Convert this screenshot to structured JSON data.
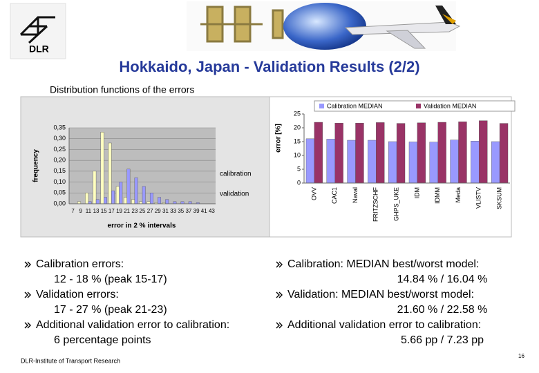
{
  "header": {
    "logo": "DLR",
    "title": "Hokkaido, Japan - Validation Results (2/2)"
  },
  "section_title": "Distribution functions of the errors",
  "chart_data": [
    {
      "type": "bar",
      "xlabel": "error in 2 % intervals",
      "ylabel": "frequency",
      "categories": [
        "7",
        "9",
        "11",
        "13",
        "15",
        "17",
        "19",
        "21",
        "23",
        "25",
        "27",
        "29",
        "31",
        "33",
        "35",
        "37",
        "39",
        "41",
        "43"
      ],
      "series": [
        {
          "name": "calibration",
          "color": "#ffffc0",
          "values": [
            0.0,
            0.01,
            0.05,
            0.15,
            0.33,
            0.28,
            0.08,
            0.03,
            0.02,
            0.01,
            0.01,
            0.005,
            0.005,
            0.0,
            0.0,
            0.0,
            0.0,
            0.0,
            0.0
          ]
        },
        {
          "name": "validation",
          "color": "#9999ff",
          "values": [
            0.0,
            0.0,
            0.01,
            0.02,
            0.03,
            0.06,
            0.1,
            0.16,
            0.12,
            0.08,
            0.05,
            0.03,
            0.02,
            0.01,
            0.01,
            0.01,
            0.005,
            0.0,
            0.0
          ]
        }
      ],
      "ylim": [
        0,
        0.35
      ],
      "yticks": [
        {
          "value": 0,
          "label": "0,00"
        },
        {
          "value": 0.05,
          "label": "0,05"
        },
        {
          "value": 0.1,
          "label": "0,10"
        },
        {
          "value": 0.15,
          "label": "0,15"
        },
        {
          "value": 0.2,
          "label": "0,20"
        },
        {
          "value": 0.25,
          "label": "0,25"
        },
        {
          "value": 0.3,
          "label": "0,30"
        },
        {
          "value": 0.35,
          "label": "0,35"
        }
      ],
      "grid": true
    },
    {
      "type": "bar",
      "ylabel": "error [%]",
      "categories": [
        "OVV",
        "CAC1",
        "Naval",
        "FRITZSCHF",
        "GHPS_UKE",
        "IDM",
        "IDMM",
        "Meda",
        "VLISTV",
        "SKSUM"
      ],
      "series": [
        {
          "name": "Calibration MEDIAN",
          "color": "#9999ff",
          "values": [
            16.04,
            15.9,
            15.5,
            15.5,
            15.0,
            14.9,
            14.84,
            15.6,
            15.2,
            15.0
          ]
        },
        {
          "name": "Validation MEDIAN",
          "color": "#993366",
          "values": [
            22.0,
            21.7,
            21.7,
            21.9,
            21.6,
            21.8,
            22.0,
            22.2,
            22.58,
            21.6
          ]
        }
      ],
      "ylim": [
        0,
        25
      ],
      "yticks": [
        0,
        5,
        10,
        15,
        20,
        25
      ],
      "grid": false,
      "rotate_x_labels": true,
      "legend": "top"
    }
  ],
  "left_bullets": [
    [
      "Calibration errors:",
      "12 - 18 % (peak 15-17)"
    ],
    [
      "Validation errors:",
      "17 - 27 % (peak 21-23)"
    ],
    [
      "Additional validation error to calibration:",
      "6 percentage points"
    ]
  ],
  "right_bullets": [
    [
      "Calibration: MEDIAN best/worst model:",
      "14.84 % / 16.04 %"
    ],
    [
      "Validation: MEDIAN best/worst model:",
      "21.60 % / 22.58 %"
    ],
    [
      "Additional validation error to calibration:",
      "5.66 pp / 7.23 pp"
    ]
  ],
  "footer": "DLR-Institute of Transport Research",
  "page_number": "16"
}
